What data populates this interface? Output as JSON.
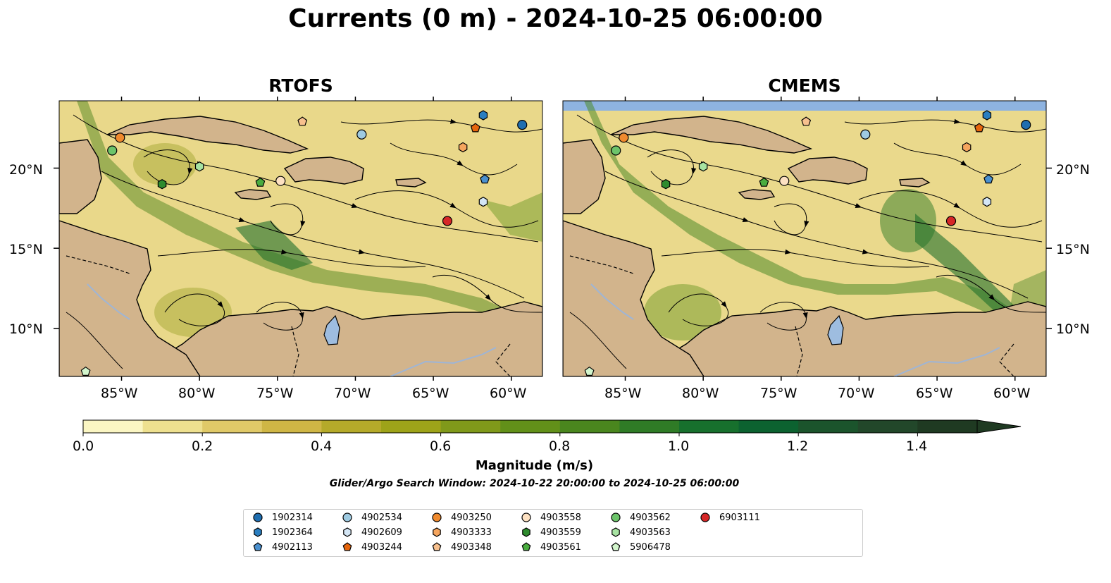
{
  "title": "Currents (0 m) - 2024-10-25 06:00:00",
  "panels": [
    {
      "title": "RTOFS"
    },
    {
      "title": "CMEMS"
    }
  ],
  "lon_labels": [
    "85°W",
    "80°W",
    "75°W",
    "70°W",
    "65°W",
    "60°W"
  ],
  "lat_labels": [
    "20°N",
    "15°N",
    "10°N"
  ],
  "map_extent": {
    "lon": [
      -89,
      -58
    ],
    "lat": [
      7,
      24.2
    ]
  },
  "colorbar": {
    "label": "Magnitude (m/s)",
    "tick_labels": [
      "0.0",
      "0.2",
      "0.4",
      "0.6",
      "0.8",
      "1.0",
      "1.2",
      "1.4"
    ],
    "range": [
      0,
      1.5
    ],
    "step": 0.1,
    "colors": [
      "#fbf6c3",
      "#eee08f",
      "#e0c968",
      "#cfb645",
      "#b5aa2a",
      "#9ea319",
      "#80991a",
      "#629019",
      "#4a861e",
      "#2f7b26",
      "#17702d",
      "#0c6230",
      "#1b542c",
      "#22472a",
      "#1f3a22"
    ],
    "extend": "max"
  },
  "search_window": "Glider/Argo Search Window: 2024-10-22 20:00:00 to 2024-10-25 06:00:00",
  "floats": [
    {
      "id": "1902314",
      "marker": "circle",
      "color": "#1f6eb0",
      "lon": -59.3,
      "lat": 22.7
    },
    {
      "id": "1902364",
      "marker": "hexagon",
      "color": "#2a7ec0",
      "lon": -61.8,
      "lat": 23.3
    },
    {
      "id": "4902113",
      "marker": "pentagon",
      "color": "#4a90cf",
      "lon": -61.7,
      "lat": 19.3
    },
    {
      "id": "4902534",
      "marker": "circle",
      "color": "#9ecae1",
      "lon": -69.6,
      "lat": 22.1
    },
    {
      "id": "4902609",
      "marker": "hexagon",
      "color": "#d4e6f5",
      "lon": -61.8,
      "lat": 17.9
    },
    {
      "id": "4903244",
      "marker": "pentagon",
      "color": "#e6650d",
      "lon": -62.3,
      "lat": 22.5
    },
    {
      "id": "4903250",
      "marker": "circle",
      "color": "#f08a2e",
      "lon": -85.1,
      "lat": 21.9
    },
    {
      "id": "4903333",
      "marker": "hexagon",
      "color": "#f5a55e",
      "lon": -63.1,
      "lat": 21.3
    },
    {
      "id": "4903348",
      "marker": "pentagon",
      "color": "#f7c08e",
      "lon": -73.4,
      "lat": 22.9
    },
    {
      "id": "4903558",
      "marker": "circle",
      "color": "#fde1c2",
      "lon": -74.8,
      "lat": 19.2
    },
    {
      "id": "4903559",
      "marker": "hexagon",
      "color": "#2e8b2e",
      "lon": -82.4,
      "lat": 19.0
    },
    {
      "id": "4903561",
      "marker": "pentagon",
      "color": "#4aac3f",
      "lon": -76.1,
      "lat": 19.1
    },
    {
      "id": "4903562",
      "marker": "circle",
      "color": "#6cc46a",
      "lon": -85.6,
      "lat": 21.1
    },
    {
      "id": "4903563",
      "marker": "hexagon",
      "color": "#a7e3a2",
      "lon": -80.0,
      "lat": 20.1
    },
    {
      "id": "5906478",
      "marker": "pentagon",
      "color": "#d2f5cc",
      "lon": -87.3,
      "lat": 7.3
    },
    {
      "id": "6903111",
      "marker": "circle",
      "color": "#d62727",
      "lon": -64.1,
      "lat": 16.7
    }
  ],
  "colors": {
    "land": "#d2b48c",
    "lake": "#9ebde0",
    "no_data": "#8eb3e0"
  }
}
